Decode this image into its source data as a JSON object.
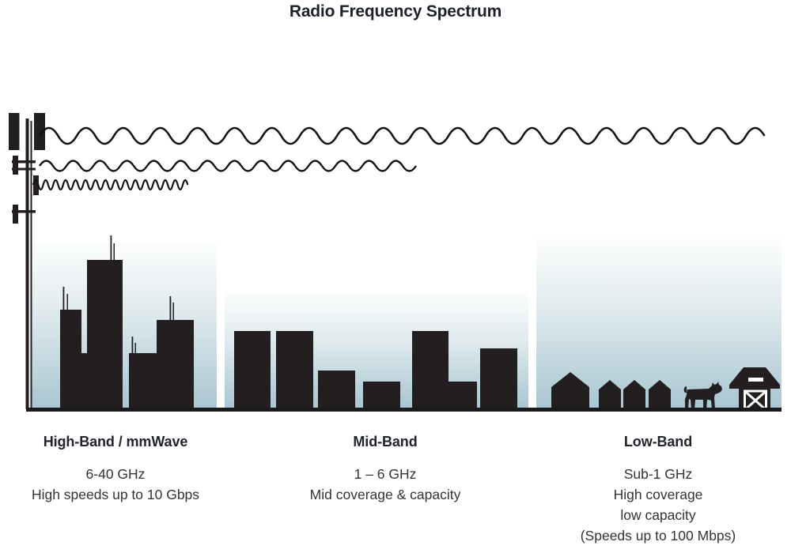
{
  "title": "Radio Frequency Spectrum",
  "colors": {
    "silhouette": "#231f20",
    "sky_top": "#fdfefe",
    "sky_mid": "#dde9ec",
    "sky_bottom": "#a9c6d2",
    "ground": "#1a1a1a",
    "ink_heading": "#20242c",
    "ink_body": "#333333"
  },
  "bands": [
    {
      "id": "high-band",
      "heading": "High-Band / mmWave",
      "lines": [
        "6-40 GHz",
        "High speeds up to 10 Gbps"
      ]
    },
    {
      "id": "mid-band",
      "heading": "Mid-Band",
      "lines": [
        "1 – 6 GHz",
        "Mid coverage & capacity"
      ]
    },
    {
      "id": "low-band",
      "heading": "Low-Band",
      "lines": [
        "Sub-1 GHz",
        "High coverage",
        "low capacity",
        "(Speeds up to 100 Mbps)"
      ]
    }
  ],
  "icons": {
    "tower": "cell-tower",
    "waves": [
      "low-frequency-long-wave",
      "mid-frequency-wave",
      "high-frequency-short-wave"
    ],
    "scenes": [
      "dense-city-skyline",
      "town-skyline",
      "rural-houses-cow-barn"
    ]
  }
}
